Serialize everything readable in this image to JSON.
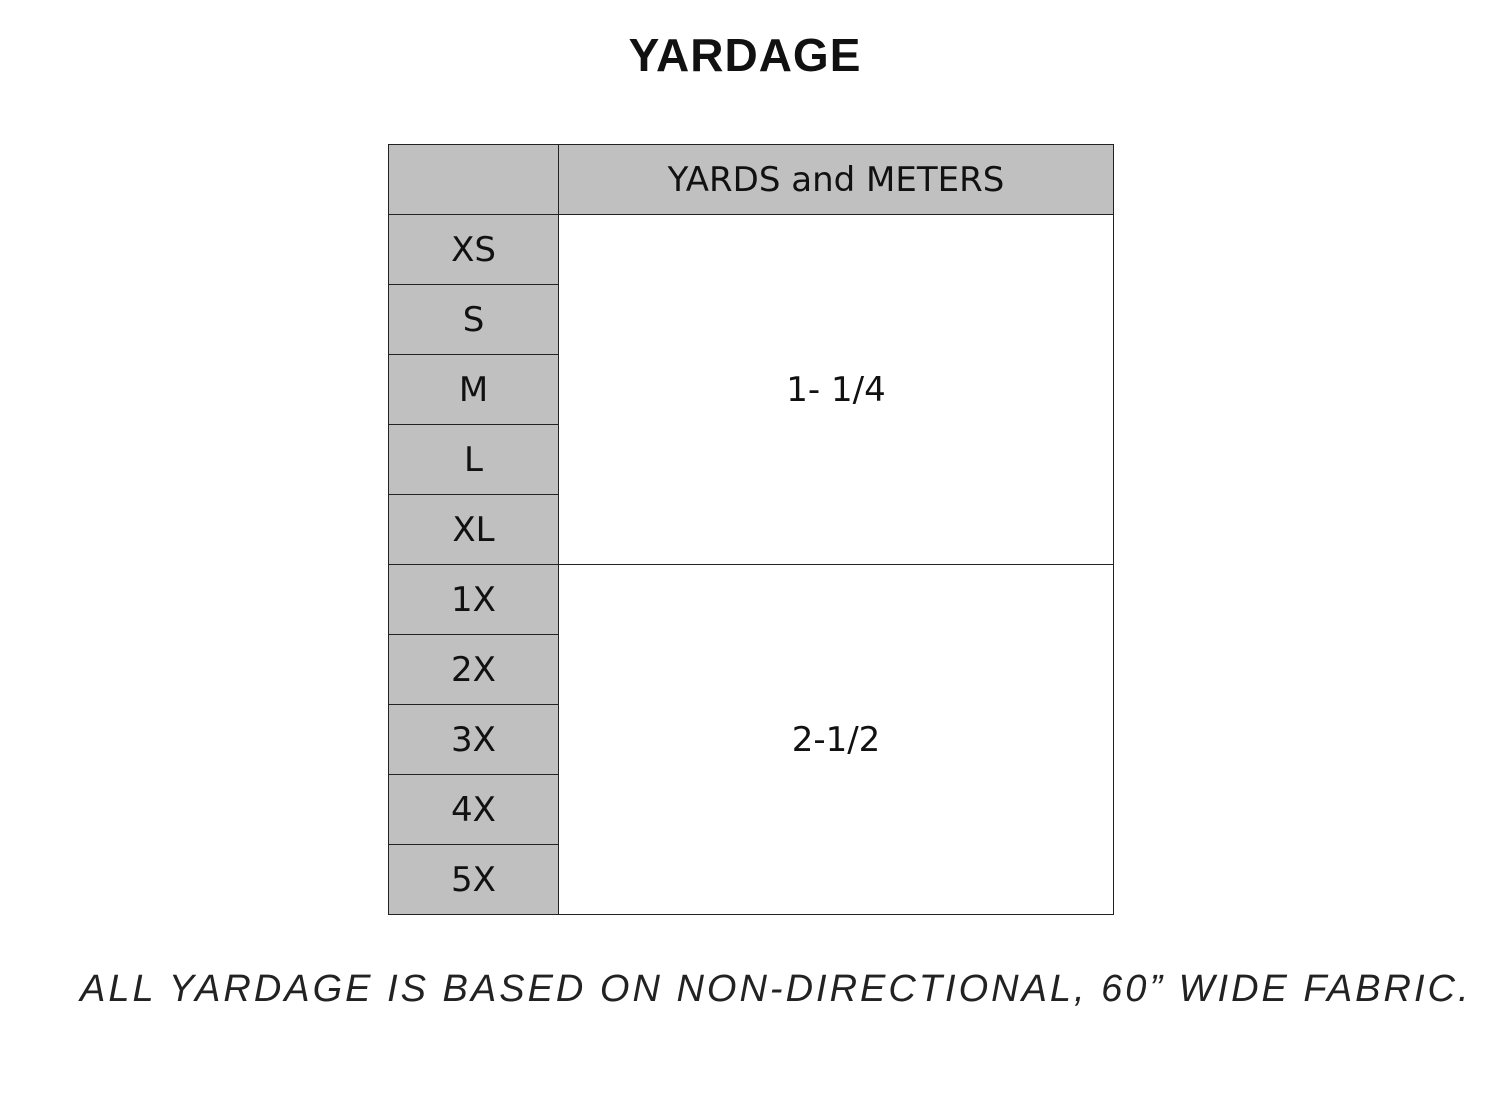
{
  "title": "YARDAGE",
  "table": {
    "header": "YARDS and METERS",
    "groups": [
      {
        "value": "1- 1/4",
        "sizes": [
          "XS",
          "S",
          "M",
          "L",
          "XL"
        ]
      },
      {
        "value": "2-1/2",
        "sizes": [
          "1X",
          "2X",
          "3X",
          "4X",
          "5X"
        ]
      }
    ]
  },
  "note": "ALL YARDAGE IS BASED ON NON-DIRECTIONAL, 60” WIDE FABRIC."
}
